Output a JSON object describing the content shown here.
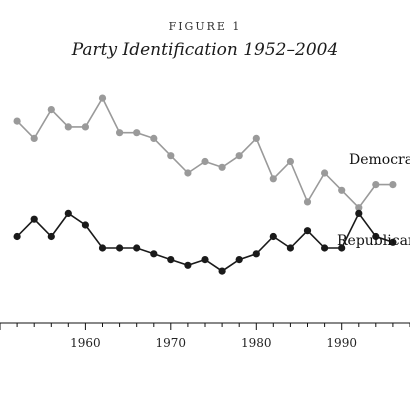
{
  "figure": {
    "label": "FIGURE 1",
    "title": "Party Identification 1952–2004"
  },
  "chart_data": {
    "type": "line",
    "title": "Party Identification 1952–2004",
    "xlabel": "",
    "ylabel": "",
    "xlim": [
      1950,
      1998
    ],
    "ylim": [
      12,
      55
    ],
    "xticks": [
      1960,
      1970,
      1980,
      1990
    ],
    "xtick_labels": [
      "1960",
      "1970",
      "1980",
      "1990"
    ],
    "grid": false,
    "series": [
      {
        "name": "Democrats",
        "color": "#9a9a9a",
        "x": [
          1952,
          1954,
          1956,
          1958,
          1960,
          1962,
          1964,
          1966,
          1968,
          1970,
          1972,
          1974,
          1976,
          1978,
          1980,
          1982,
          1984,
          1986,
          1988,
          1990,
          1992,
          1994,
          1996
        ],
        "y": [
          47,
          44,
          49,
          46,
          46,
          51,
          45,
          45,
          44,
          41,
          38,
          40,
          39,
          41,
          44,
          37,
          40,
          33,
          38,
          35,
          32,
          36,
          36
        ]
      },
      {
        "name": "Republicans",
        "color": "#1a1a1a",
        "x": [
          1952,
          1954,
          1956,
          1958,
          1960,
          1962,
          1964,
          1966,
          1968,
          1970,
          1972,
          1974,
          1976,
          1978,
          1980,
          1982,
          1984,
          1986,
          1988,
          1990,
          1992,
          1994,
          1996
        ],
        "y": [
          27,
          30,
          27,
          31,
          29,
          25,
          25,
          25,
          24,
          23,
          22,
          23,
          21,
          23,
          24,
          27,
          25,
          28,
          25,
          25,
          31,
          27,
          26
        ]
      }
    ]
  }
}
